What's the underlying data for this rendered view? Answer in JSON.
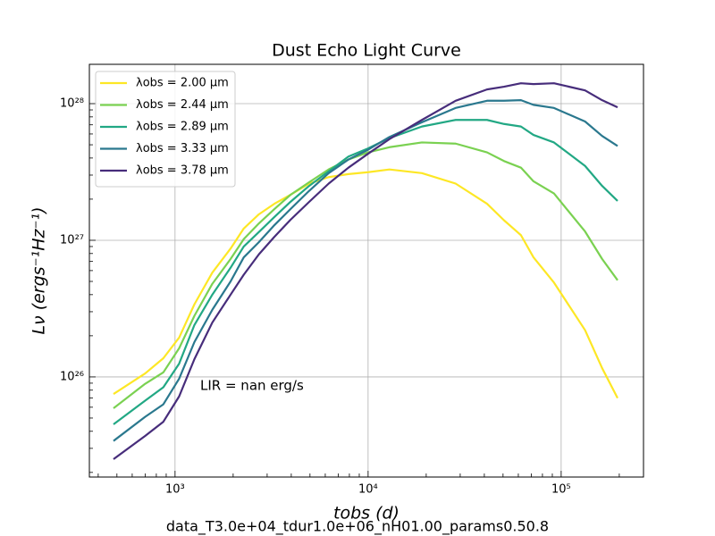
{
  "chart_data": {
    "type": "line",
    "title": "Dust Echo Light Curve",
    "x_label": "tobs (d)",
    "y_label": "Lν (ergs⁻¹Hz⁻¹)",
    "annotation": "LIR = nan erg/s",
    "caption": "data_T3.0e+04_tdur1.0e+06_nH01.00_params0.50.8",
    "log_x": true,
    "log_y": true,
    "grid": true,
    "legend": "upper left",
    "xlim": [
      360,
      267000
    ],
    "ylim": [
      1.85e+25,
      1.94e+28
    ],
    "xticks": [
      {
        "value": 1000,
        "label": "10³"
      },
      {
        "value": 10000,
        "label": "10⁴"
      },
      {
        "value": 100000,
        "label": "10⁵"
      }
    ],
    "yticks": [
      {
        "value": 1e+26,
        "label": "10²⁶"
      },
      {
        "value": 1e+27,
        "label": "10²⁷"
      },
      {
        "value": 1e+28,
        "label": "10²⁸"
      }
    ],
    "xminor": [
      400,
      500,
      600,
      700,
      800,
      900,
      2000,
      3000,
      4000,
      5000,
      6000,
      7000,
      8000,
      9000,
      20000,
      30000,
      40000,
      50000,
      60000,
      70000,
      80000,
      90000,
      200000
    ],
    "yminor": [
      2e+25,
      3e+25,
      4e+25,
      5e+25,
      6e+25,
      7e+25,
      8e+25,
      9e+25,
      2e+26,
      3e+26,
      4e+26,
      5e+26,
      6e+26,
      7e+26,
      8e+26,
      9e+26,
      2e+27,
      3e+27,
      4e+27,
      5e+27,
      6e+27,
      7e+27,
      8e+27,
      9e+27
    ],
    "x": [
      480,
      700,
      870,
      1050,
      1260,
      1560,
      1940,
      2270,
      2720,
      3270,
      3960,
      4950,
      6250,
      7910,
      10000,
      12900,
      19000,
      28400,
      41300,
      50600,
      61900,
      71900,
      91800,
      133000,
      163000,
      196000
    ],
    "series": [
      {
        "name": "λobs = 2.00 μm",
        "color": "#fde725",
        "values": [
          7.5e+25,
          1.06e+26,
          1.37e+26,
          1.94e+26,
          3.4e+26,
          5.8e+26,
          8.7e+26,
          1.22e+27,
          1.55e+27,
          1.85e+27,
          2.15e+27,
          2.6e+27,
          2.9e+27,
          3.05e+27,
          3.15e+27,
          3.3e+27,
          3.1e+27,
          2.6e+27,
          1.85e+27,
          1.4e+27,
          1.09e+27,
          7.5e+26,
          4.9e+26,
          2.2e+26,
          1.16e+26,
          7e+25
        ]
      },
      {
        "name": "λobs = 2.44 μm",
        "color": "#7ad151",
        "values": [
          5.9e+25,
          8.9e+25,
          1.08e+26,
          1.62e+26,
          2.8e+26,
          4.8e+26,
          7.3e+26,
          1.02e+27,
          1.33e+27,
          1.69e+27,
          2.15e+27,
          2.66e+27,
          3.3e+27,
          3.9e+27,
          4.4e+27,
          4.8e+27,
          5.2e+27,
          5.1e+27,
          4.4e+27,
          3.8e+27,
          3.4e+27,
          2.7e+27,
          2.2e+27,
          1.16e+27,
          7.3e+26,
          5.1e+26
        ]
      },
      {
        "name": "λobs = 2.89 μm",
        "color": "#22a884",
        "values": [
          4.5e+25,
          6.7e+25,
          8.4e+25,
          1.25e+26,
          2.4e+26,
          4e+26,
          6.3e+26,
          9e+26,
          1.15e+27,
          1.48e+27,
          1.91e+27,
          2.5e+27,
          3.2e+27,
          4.1e+27,
          4.7e+27,
          5.6e+27,
          6.8e+27,
          7.6e+27,
          7.6e+27,
          7.1e+27,
          6.8e+27,
          5.9e+27,
          5.2e+27,
          3.5e+27,
          2.5e+27,
          1.94e+27
        ]
      },
      {
        "name": "λobs = 3.33 μm",
        "color": "#2a788e",
        "values": [
          3.4e+25,
          5.1e+25,
          6.3e+25,
          9.7e+25,
          1.8e+26,
          3.1e+26,
          5e+26,
          7.5e+26,
          9.7e+26,
          1.29e+27,
          1.69e+27,
          2.3e+27,
          3.1e+27,
          3.9e+27,
          4.6e+27,
          5.7e+27,
          7.3e+27,
          9.3e+27,
          1.05e+28,
          1.05e+28,
          1.06e+28,
          9.8e+27,
          9.3e+27,
          7.4e+27,
          5.8e+27,
          4.9e+27
        ]
      },
      {
        "name": "λobs = 3.78 μm",
        "color": "#472d7b",
        "values": [
          2.5e+25,
          3.7e+25,
          4.7e+25,
          7.2e+25,
          1.35e+26,
          2.5e+26,
          4e+26,
          5.6e+26,
          7.9e+26,
          1.06e+27,
          1.41e+27,
          1.91e+27,
          2.6e+27,
          3.4e+27,
          4.3e+27,
          5.5e+27,
          7.6e+27,
          1.05e+28,
          1.27e+28,
          1.33e+28,
          1.41e+28,
          1.39e+28,
          1.41e+28,
          1.25e+28,
          1.06e+28,
          9.4e+27
        ]
      }
    ]
  }
}
